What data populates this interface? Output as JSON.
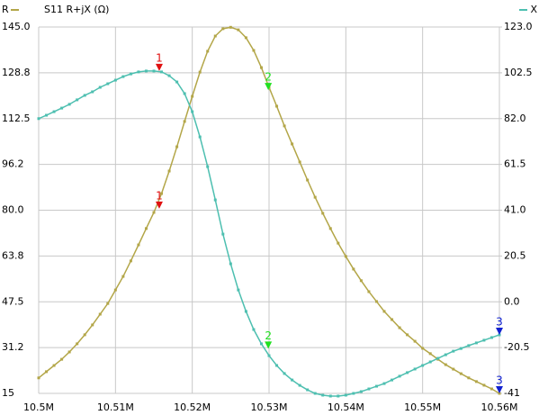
{
  "chart_data": {
    "type": "line",
    "title": "S11 R+jX (Ω)",
    "x": [
      10.5,
      10.501,
      10.502,
      10.503,
      10.504,
      10.505,
      10.506,
      10.507,
      10.508,
      10.509,
      10.51,
      10.511,
      10.512,
      10.513,
      10.514,
      10.515,
      10.516,
      10.517,
      10.518,
      10.519,
      10.52,
      10.521,
      10.522,
      10.523,
      10.524,
      10.525,
      10.526,
      10.527,
      10.528,
      10.529,
      10.53,
      10.531,
      10.532,
      10.533,
      10.534,
      10.535,
      10.536,
      10.537,
      10.538,
      10.539,
      10.54,
      10.541,
      10.542,
      10.543,
      10.544,
      10.545,
      10.546,
      10.547,
      10.548,
      10.549,
      10.55,
      10.551,
      10.552,
      10.553,
      10.554,
      10.555,
      10.556,
      10.557,
      10.558,
      10.559,
      10.56
    ],
    "series": [
      {
        "name": "R",
        "color": "#b3a648",
        "axis": "y",
        "values": [
          20.5,
          22.7,
          24.9,
          27.1,
          29.7,
          32.6,
          35.8,
          39.3,
          43.1,
          46.9,
          51.7,
          56.5,
          62.0,
          67.7,
          73.5,
          79.2,
          85.9,
          93.9,
          102.5,
          111.5,
          120.4,
          129.0,
          136.4,
          141.8,
          144.4,
          144.9,
          144.0,
          141.2,
          136.7,
          130.6,
          123.6,
          116.9,
          109.9,
          103.5,
          97.1,
          90.7,
          84.6,
          78.9,
          73.5,
          68.3,
          63.6,
          59.1,
          55.0,
          51.1,
          47.6,
          44.1,
          41.2,
          38.3,
          35.8,
          33.5,
          31.0,
          29.1,
          27.1,
          25.2,
          23.6,
          22.0,
          20.5,
          19.2,
          17.9,
          16.6,
          15.0
        ]
      },
      {
        "name": "X",
        "color": "#4dbfb0",
        "axis": "y2",
        "values": [
          82.0,
          83.5,
          85.1,
          86.7,
          88.4,
          90.4,
          92.4,
          94.0,
          96.0,
          97.6,
          99.2,
          100.8,
          102.0,
          102.9,
          103.3,
          103.3,
          102.9,
          101.2,
          98.4,
          93.2,
          85.1,
          73.8,
          60.5,
          45.6,
          30.3,
          17.0,
          5.3,
          -4.3,
          -12.4,
          -18.8,
          -24.1,
          -28.5,
          -32.1,
          -35.0,
          -37.4,
          -39.4,
          -41.0,
          -41.8,
          -42.2,
          -42.2,
          -41.8,
          -41.0,
          -40.2,
          -39.0,
          -37.8,
          -36.6,
          -35.0,
          -33.3,
          -31.7,
          -30.1,
          -28.5,
          -26.9,
          -25.3,
          -23.7,
          -22.1,
          -20.9,
          -19.6,
          -18.4,
          -17.2,
          -16.0,
          -14.8
        ]
      }
    ],
    "xlim": [
      10.5,
      10.56
    ],
    "xticks": [
      {
        "value": 10.5,
        "label": "10.5M"
      },
      {
        "value": 10.51,
        "label": "10.51M"
      },
      {
        "value": 10.52,
        "label": "10.52M"
      },
      {
        "value": 10.53,
        "label": "10.53M"
      },
      {
        "value": 10.54,
        "label": "10.54M"
      },
      {
        "value": 10.55,
        "label": "10.55M"
      },
      {
        "value": 10.56,
        "label": "10.56M"
      }
    ],
    "ylim": [
      15,
      145
    ],
    "yticks": [
      15,
      {
        "value": 31.25,
        "label": "31.2"
      },
      47.5,
      {
        "value": 63.75,
        "label": "63.8"
      },
      {
        "value": 80,
        "label": "80.0"
      },
      {
        "value": 96.25,
        "label": "96.2"
      },
      112.5,
      {
        "value": 128.75,
        "label": "128.8"
      },
      {
        "value": 145,
        "label": "145.0"
      }
    ],
    "y2lim": [
      -41,
      123
    ],
    "y2ticks": [
      -41,
      -20.5,
      {
        "value": 0,
        "label": "0.0"
      },
      20.5,
      {
        "value": 41,
        "label": "41.0"
      },
      61.5,
      {
        "value": 82,
        "label": "82.0"
      },
      102.5,
      {
        "value": 123,
        "label": "123.0"
      }
    ],
    "grid": true,
    "markers": [
      {
        "label": "1",
        "x": 10.5157,
        "color": "#e01010",
        "values": [
          80.5,
          103.3
        ]
      },
      {
        "label": "2",
        "x": 10.5299,
        "color": "#20e020",
        "values": [
          122.6,
          -21
        ]
      },
      {
        "label": "3",
        "x": 10.56,
        "color": "#1020d0",
        "values": [
          15,
          -14.8
        ]
      }
    ]
  }
}
